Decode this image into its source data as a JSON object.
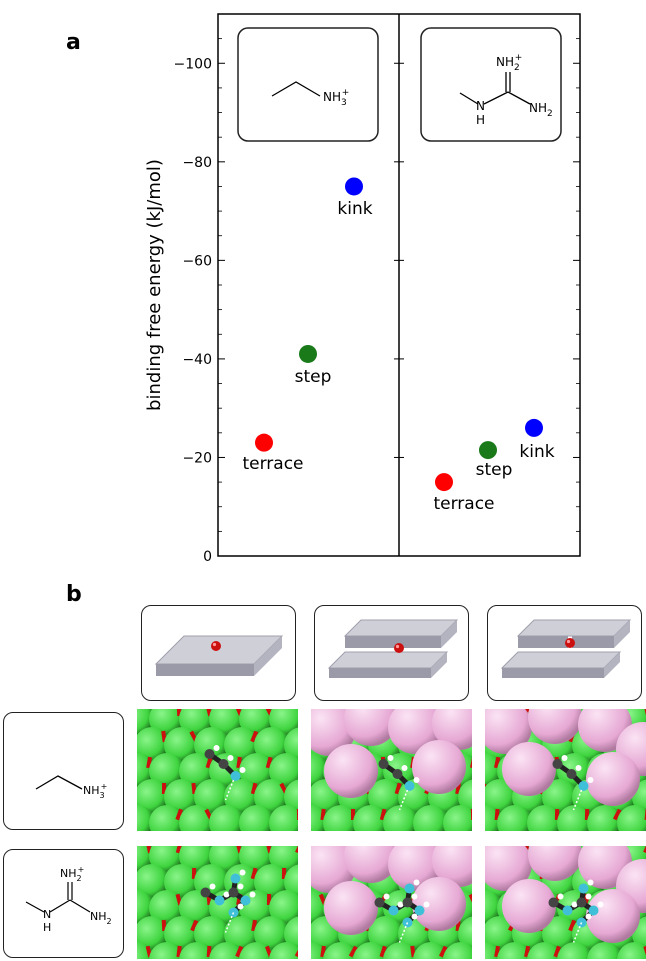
{
  "panel_a_label": "a",
  "panel_b_label": "b",
  "molecules": {
    "ethylammonium": {
      "ammonium": "NH",
      "sub3": "3",
      "sup_plus": "+"
    },
    "methylguanidinium": {
      "top": "NH",
      "top_sub": "2",
      "top_sup": "+",
      "nh": "N",
      "h": "H",
      "right": "NH",
      "right_sub": "2"
    }
  },
  "chart_data": {
    "type": "scatter",
    "ylabel": "binding free energy (kJ/mol)",
    "y_inverted": true,
    "ylim": [
      0,
      -110
    ],
    "yticks": [
      0,
      -20,
      -40,
      -60,
      -80,
      -100
    ],
    "ytick_labels": [
      "0",
      "−20",
      "−40",
      "−60",
      "−80",
      "−100"
    ],
    "legend": "none",
    "grid": false,
    "series": [
      {
        "molecule": "ethylammonium",
        "points": [
          {
            "label": "terrace",
            "y": -23,
            "color": "#ff0000"
          },
          {
            "label": "step",
            "y": -41,
            "color": "#1a7a1a"
          },
          {
            "label": "kink",
            "y": -75,
            "color": "#0000ff"
          }
        ]
      },
      {
        "molecule": "methylguanidinium",
        "points": [
          {
            "label": "terrace",
            "y": -15,
            "color": "#ff0000"
          },
          {
            "label": "step",
            "y": -21.5,
            "color": "#1a7a1a"
          },
          {
            "label": "kink",
            "y": -26,
            "color": "#0000ff"
          }
        ]
      }
    ]
  },
  "colors": {
    "calcite_green": "#3ed43e",
    "calcium_pink": "#e6a8d4",
    "oxygen_red": "#cc1010",
    "carbon": "#444444",
    "nitrogen": "#40c0d8",
    "slab": "#c8c8d2"
  }
}
